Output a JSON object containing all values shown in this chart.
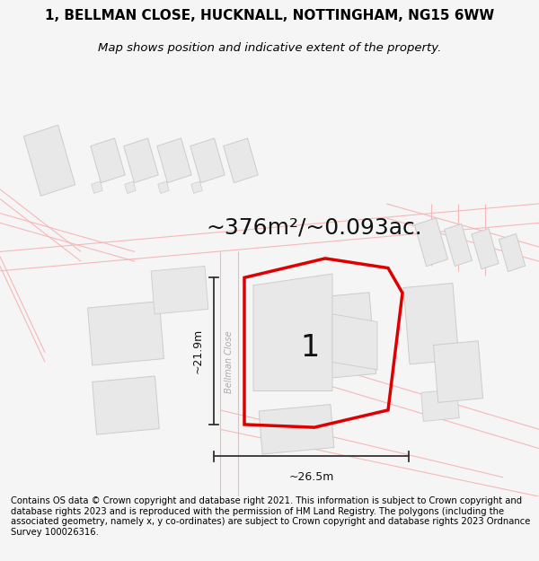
{
  "title_line1": "1, BELLMAN CLOSE, HUCKNALL, NOTTINGHAM, NG15 6WW",
  "title_line2": "Map shows position and indicative extent of the property.",
  "area_text": "~376m²/~0.093ac.",
  "dim_vertical": "~21.9m",
  "dim_horizontal": "~26.5m",
  "street_label": "Bellman Close",
  "plot_number": "1",
  "footer_text": "Contains OS data © Crown copyright and database right 2021. This information is subject to Crown copyright and database rights 2023 and is reproduced with the permission of HM Land Registry. The polygons (including the associated geometry, namely x, y co-ordinates) are subject to Crown copyright and database rights 2023 Ordnance Survey 100026316.",
  "bg_color": "#f5f5f5",
  "map_bg": "#ffffff",
  "road_color": "#f5b8b8",
  "road_fill": "#ffffff",
  "building_fill": "#e8e8e8",
  "building_stroke": "#cccccc",
  "plot_stroke": "#dd0000",
  "dim_line_color": "#333333",
  "title_fontsize": 11,
  "subtitle_fontsize": 9.5,
  "area_fontsize": 18,
  "dim_fontsize": 9,
  "plot_number_fontsize": 24,
  "street_fontsize": 7,
  "footer_fontsize": 7.2
}
